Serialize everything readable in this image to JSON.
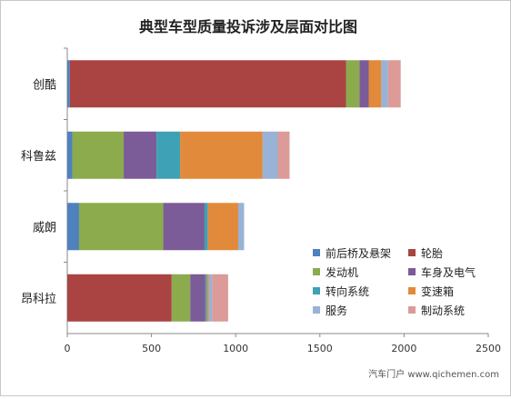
{
  "chart_data": {
    "type": "bar",
    "orientation": "horizontal",
    "stacked": true,
    "title": "典型车型质量投诉涉及层面对比图",
    "categories": [
      "创酷",
      "科鲁兹",
      "威朗",
      "昂科拉"
    ],
    "series": [
      {
        "name": "前后桥及悬架",
        "color": "#4f81bd",
        "values": [
          15,
          30,
          70,
          0
        ]
      },
      {
        "name": "轮胎",
        "color": "#a94442",
        "values": [
          1640,
          0,
          0,
          620
        ]
      },
      {
        "name": "发动机",
        "color": "#8cab4c",
        "values": [
          80,
          305,
          500,
          110
        ]
      },
      {
        "name": "车身及电气",
        "color": "#7b5b98",
        "values": [
          55,
          195,
          245,
          90
        ]
      },
      {
        "name": "转向系统",
        "color": "#3ea1b5",
        "values": [
          0,
          140,
          20,
          10
        ]
      },
      {
        "name": "变速箱",
        "color": "#e28a3b",
        "values": [
          75,
          490,
          180,
          10
        ]
      },
      {
        "name": "服务",
        "color": "#99b3d6",
        "values": [
          40,
          90,
          35,
          20
        ]
      },
      {
        "name": "制动系统",
        "color": "#dc9a98",
        "values": [
          75,
          70,
          0,
          95
        ]
      }
    ],
    "xlim": [
      0,
      2500
    ],
    "xticks": [
      0,
      500,
      1000,
      1500,
      2000,
      2500
    ],
    "grid": false,
    "legend_position": "lower-right"
  },
  "watermark": "汽车门户 www.qichemen.com"
}
